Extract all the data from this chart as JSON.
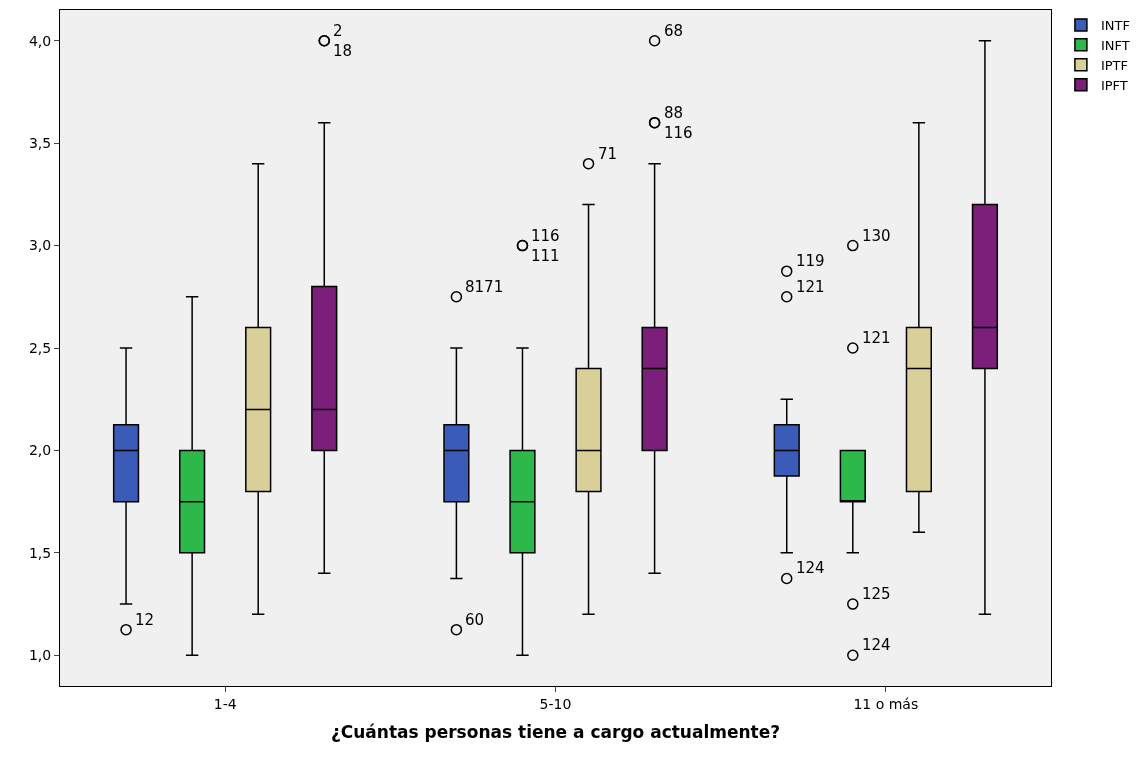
{
  "chart_data": {
    "type": "box",
    "xlabel": "¿Cuántas personas tiene a cargo actualmente?",
    "categories": [
      "1-4",
      "5-10",
      "11 o más"
    ],
    "ylim": [
      0.85,
      4.15
    ],
    "yticks": [
      {
        "value": 1,
        "label": "1,0"
      },
      {
        "value": 1.5,
        "label": "1,5"
      },
      {
        "value": 2,
        "label": "2,0"
      },
      {
        "value": 2.5,
        "label": "2,5"
      },
      {
        "value": 3,
        "label": "3,0"
      },
      {
        "value": 3.5,
        "label": "3,5"
      },
      {
        "value": 4,
        "label": "4,0"
      }
    ],
    "grid": false,
    "legend": "top right",
    "marker": "circle",
    "series": [
      {
        "name": "INTF",
        "color": "#3a5bb8",
        "boxes": [
          {
            "low": 1.25,
            "q1": 1.75,
            "median": 2.0,
            "q3": 2.125,
            "high": 2.5,
            "outliers": [
              1.125
            ]
          },
          {
            "low": 1.375,
            "q1": 1.75,
            "median": 2.0,
            "q3": 2.125,
            "high": 2.5,
            "outliers": [
              2.75,
              1.125
            ]
          },
          {
            "low": 1.5,
            "q1": 1.875,
            "median": 2.0,
            "q3": 2.125,
            "high": 2.25,
            "outliers": [
              2.875,
              2.75,
              1.375
            ]
          }
        ]
      },
      {
        "name": "INFT",
        "color": "#2db84a",
        "boxes": [
          {
            "low": 1.0,
            "q1": 1.5,
            "median": 1.75,
            "q3": 2.0,
            "high": 2.75
          },
          {
            "low": 1.0,
            "q1": 1.5,
            "median": 1.75,
            "q3": 2.0,
            "high": 2.5,
            "outliers": [
              3.0,
              3.0
            ]
          },
          {
            "low": 1.5,
            "q1": 1.75,
            "median": 1.75,
            "q3": 2.0,
            "high": 2.0,
            "outliers": [
              3.0,
              2.5,
              1.25,
              1.0
            ]
          }
        ]
      },
      {
        "name": "IPTF",
        "color": "#d8d098",
        "boxes": [
          {
            "low": 1.2,
            "q1": 1.8,
            "median": 2.2,
            "q3": 2.6,
            "high": 3.4
          },
          {
            "low": 1.2,
            "q1": 1.8,
            "median": 2.0,
            "q3": 2.4,
            "high": 3.2,
            "outliers": [
              3.4
            ]
          },
          {
            "low": 1.6,
            "q1": 1.8,
            "median": 2.4,
            "q3": 2.6,
            "high": 3.6
          }
        ]
      },
      {
        "name": "IPFT",
        "color": "#7b1f7b",
        "boxes": [
          {
            "low": 1.4,
            "q1": 2.0,
            "median": 2.2,
            "q3": 2.8,
            "high": 3.6,
            "outliers": [
              4.0,
              4.0
            ]
          },
          {
            "low": 1.4,
            "q1": 2.0,
            "median": 2.4,
            "q3": 2.6,
            "high": 3.4,
            "outliers": [
              3.6,
              3.6,
              4.0
            ]
          },
          {
            "low": 1.2,
            "q1": 2.4,
            "median": 2.6,
            "q3": 3.2,
            "high": 4.0
          }
        ]
      }
    ],
    "annotations": [
      "12",
      "8171",
      "60",
      "119",
      "121",
      "124",
      "116",
      "111",
      "130",
      "121",
      "125",
      "124",
      "71",
      "2",
      "18",
      "88",
      "116",
      "68"
    ]
  }
}
